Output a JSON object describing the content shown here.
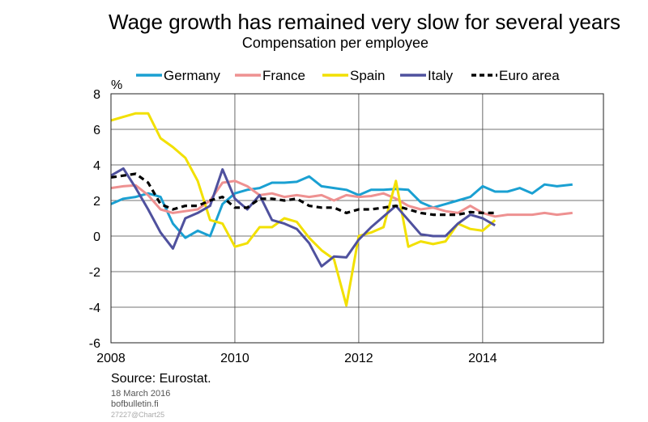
{
  "chart_data": {
    "type": "line",
    "title": "Wage growth has remained very slow for several years",
    "subtitle": "Compensation per employee",
    "ylabel": "%",
    "ylim": [
      -6,
      8
    ],
    "yticks": [
      8,
      6,
      4,
      2,
      0,
      -2,
      -4,
      -6
    ],
    "xlim": [
      2008.0,
      2015.95
    ],
    "xticks": [
      {
        "label": "2008",
        "value": 2008
      },
      {
        "label": "2010",
        "value": 2010
      },
      {
        "label": "2012",
        "value": 2012
      },
      {
        "label": "2014",
        "value": 2014
      }
    ],
    "grid": true,
    "legend_position": "top",
    "series": [
      {
        "name": "Germany",
        "color": "#1aa0d2",
        "dash": "solid",
        "points": [
          [
            2008.0,
            1.8
          ],
          [
            2008.2,
            2.1
          ],
          [
            2008.4,
            2.2
          ],
          [
            2008.6,
            2.4
          ],
          [
            2008.8,
            2.2
          ],
          [
            2009.0,
            0.7
          ],
          [
            2009.2,
            -0.1
          ],
          [
            2009.4,
            0.3
          ],
          [
            2009.6,
            0.0
          ],
          [
            2009.8,
            1.8
          ],
          [
            2010.0,
            2.4
          ],
          [
            2010.2,
            2.6
          ],
          [
            2010.4,
            2.7
          ],
          [
            2010.6,
            3.0
          ],
          [
            2010.8,
            3.0
          ],
          [
            2011.0,
            3.05
          ],
          [
            2011.2,
            3.35
          ],
          [
            2011.4,
            2.8
          ],
          [
            2011.6,
            2.7
          ],
          [
            2011.8,
            2.6
          ],
          [
            2012.0,
            2.3
          ],
          [
            2012.2,
            2.6
          ],
          [
            2012.4,
            2.6
          ],
          [
            2012.6,
            2.65
          ],
          [
            2012.8,
            2.6
          ],
          [
            2013.0,
            1.9
          ],
          [
            2013.2,
            1.6
          ],
          [
            2013.4,
            1.8
          ],
          [
            2013.6,
            2.0
          ],
          [
            2013.8,
            2.2
          ],
          [
            2014.0,
            2.8
          ],
          [
            2014.2,
            2.5
          ],
          [
            2014.4,
            2.5
          ],
          [
            2014.6,
            2.7
          ],
          [
            2014.8,
            2.4
          ],
          [
            2015.0,
            2.9
          ],
          [
            2015.2,
            2.8
          ],
          [
            2015.45,
            2.9
          ]
        ]
      },
      {
        "name": "France",
        "color": "#ee9191",
        "dash": "solid",
        "points": [
          [
            2008.0,
            2.7
          ],
          [
            2008.2,
            2.8
          ],
          [
            2008.4,
            2.85
          ],
          [
            2008.6,
            2.3
          ],
          [
            2008.8,
            1.5
          ],
          [
            2009.0,
            1.3
          ],
          [
            2009.2,
            1.4
          ],
          [
            2009.4,
            1.5
          ],
          [
            2009.6,
            2.0
          ],
          [
            2009.8,
            3.0
          ],
          [
            2010.0,
            3.1
          ],
          [
            2010.2,
            2.8
          ],
          [
            2010.4,
            2.3
          ],
          [
            2010.6,
            2.4
          ],
          [
            2010.8,
            2.2
          ],
          [
            2011.0,
            2.3
          ],
          [
            2011.2,
            2.2
          ],
          [
            2011.4,
            2.3
          ],
          [
            2011.6,
            2.0
          ],
          [
            2011.8,
            2.3
          ],
          [
            2012.0,
            2.2
          ],
          [
            2012.2,
            2.25
          ],
          [
            2012.4,
            2.4
          ],
          [
            2012.6,
            2.1
          ],
          [
            2012.8,
            1.7
          ],
          [
            2013.0,
            1.5
          ],
          [
            2013.2,
            1.6
          ],
          [
            2013.4,
            1.4
          ],
          [
            2013.6,
            1.3
          ],
          [
            2013.8,
            1.7
          ],
          [
            2014.0,
            1.3
          ],
          [
            2014.2,
            1.1
          ],
          [
            2014.4,
            1.2
          ],
          [
            2014.6,
            1.2
          ],
          [
            2014.8,
            1.2
          ],
          [
            2015.0,
            1.3
          ],
          [
            2015.2,
            1.2
          ],
          [
            2015.45,
            1.3
          ]
        ]
      },
      {
        "name": "Spain",
        "color": "#f2e000",
        "dash": "solid",
        "points": [
          [
            2008.0,
            6.5
          ],
          [
            2008.2,
            6.7
          ],
          [
            2008.4,
            6.9
          ],
          [
            2008.6,
            6.9
          ],
          [
            2008.8,
            5.5
          ],
          [
            2009.0,
            5.0
          ],
          [
            2009.2,
            4.4
          ],
          [
            2009.4,
            3.1
          ],
          [
            2009.6,
            0.9
          ],
          [
            2009.8,
            0.7
          ],
          [
            2010.0,
            -0.6
          ],
          [
            2010.2,
            -0.4
          ],
          [
            2010.4,
            0.5
          ],
          [
            2010.6,
            0.5
          ],
          [
            2010.8,
            1.0
          ],
          [
            2011.0,
            0.8
          ],
          [
            2011.2,
            -0.1
          ],
          [
            2011.4,
            -0.8
          ],
          [
            2011.6,
            -1.3
          ],
          [
            2011.8,
            -3.9
          ],
          [
            2012.0,
            0.0
          ],
          [
            2012.2,
            0.2
          ],
          [
            2012.4,
            0.5
          ],
          [
            2012.6,
            3.1
          ],
          [
            2012.8,
            -0.6
          ],
          [
            2013.0,
            -0.3
          ],
          [
            2013.2,
            -0.45
          ],
          [
            2013.4,
            -0.3
          ],
          [
            2013.6,
            0.7
          ],
          [
            2013.8,
            0.4
          ],
          [
            2014.0,
            0.3
          ],
          [
            2014.2,
            0.9
          ]
        ]
      },
      {
        "name": "Italy",
        "color": "#4f519e",
        "dash": "solid",
        "points": [
          [
            2008.0,
            3.4
          ],
          [
            2008.2,
            3.8
          ],
          [
            2008.4,
            2.7
          ],
          [
            2008.6,
            1.5
          ],
          [
            2008.8,
            0.2
          ],
          [
            2009.0,
            -0.7
          ],
          [
            2009.2,
            1.0
          ],
          [
            2009.4,
            1.3
          ],
          [
            2009.6,
            1.7
          ],
          [
            2009.8,
            3.75
          ],
          [
            2010.0,
            2.1
          ],
          [
            2010.2,
            1.5
          ],
          [
            2010.4,
            2.3
          ],
          [
            2010.6,
            0.9
          ],
          [
            2010.8,
            0.7
          ],
          [
            2011.0,
            0.4
          ],
          [
            2011.2,
            -0.4
          ],
          [
            2011.4,
            -1.7
          ],
          [
            2011.6,
            -1.15
          ],
          [
            2011.8,
            -1.2
          ],
          [
            2012.0,
            -0.2
          ],
          [
            2012.2,
            0.5
          ],
          [
            2012.4,
            1.1
          ],
          [
            2012.6,
            1.7
          ],
          [
            2012.8,
            0.9
          ],
          [
            2013.0,
            0.1
          ],
          [
            2013.2,
            0.0
          ],
          [
            2013.4,
            0.0
          ],
          [
            2013.6,
            0.7
          ],
          [
            2013.8,
            1.2
          ],
          [
            2014.0,
            1.0
          ],
          [
            2014.2,
            0.6
          ]
        ]
      },
      {
        "name": "Euro area",
        "color": "#000000",
        "dash": "dashed",
        "points": [
          [
            2008.0,
            3.3
          ],
          [
            2008.2,
            3.4
          ],
          [
            2008.4,
            3.5
          ],
          [
            2008.6,
            3.0
          ],
          [
            2008.8,
            1.8
          ],
          [
            2009.0,
            1.5
          ],
          [
            2009.2,
            1.7
          ],
          [
            2009.4,
            1.7
          ],
          [
            2009.6,
            2.0
          ],
          [
            2009.8,
            2.2
          ],
          [
            2010.0,
            1.6
          ],
          [
            2010.2,
            1.6
          ],
          [
            2010.4,
            2.1
          ],
          [
            2010.6,
            2.1
          ],
          [
            2010.8,
            2.0
          ],
          [
            2011.0,
            2.1
          ],
          [
            2011.2,
            1.7
          ],
          [
            2011.4,
            1.6
          ],
          [
            2011.6,
            1.6
          ],
          [
            2011.8,
            1.3
          ],
          [
            2012.0,
            1.5
          ],
          [
            2012.2,
            1.5
          ],
          [
            2012.4,
            1.6
          ],
          [
            2012.6,
            1.7
          ],
          [
            2012.8,
            1.5
          ],
          [
            2013.0,
            1.3
          ],
          [
            2013.2,
            1.2
          ],
          [
            2013.4,
            1.2
          ],
          [
            2013.6,
            1.2
          ],
          [
            2013.8,
            1.35
          ],
          [
            2014.0,
            1.3
          ],
          [
            2014.2,
            1.3
          ]
        ]
      }
    ]
  },
  "footer": {
    "source": "Source: Eurostat.",
    "date": "18 March 2016",
    "site": "bofbulletin.fi",
    "code": "27227@Chart25"
  }
}
